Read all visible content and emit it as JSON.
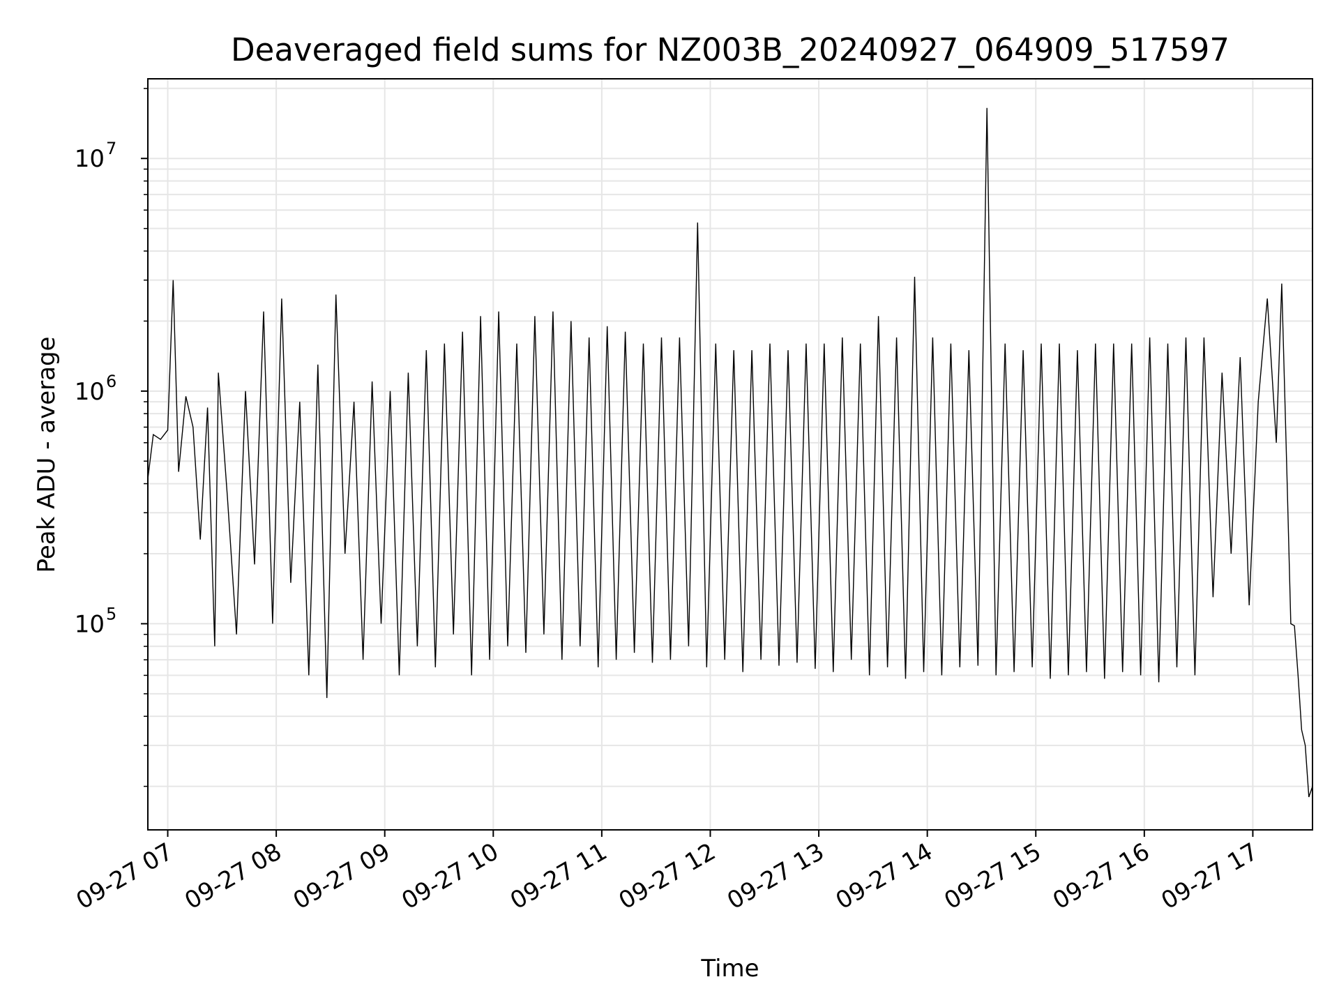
{
  "chart_data": {
    "type": "line",
    "title": "Deaveraged field sums for NZ003B_20240927_064909_517597",
    "xlabel": "Time",
    "ylabel": "Peak ADU - average",
    "yscale": "log",
    "grid": true,
    "legend": "none",
    "xlim": [
      "2024-09-27 06:49",
      "2024-09-27 17:33"
    ],
    "ylim": [
      13000,
      22000000
    ],
    "x_ticks": [
      "09-27 07",
      "09-27 08",
      "09-27 09",
      "09-27 10",
      "09-27 11",
      "09-27 12",
      "09-27 13",
      "09-27 14",
      "09-27 15",
      "09-27 16",
      "09-27 17"
    ],
    "y_ticks": [
      {
        "value": 100000,
        "base": "10",
        "exp": "5"
      },
      {
        "value": 1000000,
        "base": "10",
        "exp": "6"
      },
      {
        "value": 10000000,
        "base": "10",
        "exp": "7"
      }
    ],
    "line_color": "#000000",
    "series": [
      {
        "x": [
          "06:49",
          "06:52",
          "06:56",
          "07:00",
          "07:03",
          "07:06",
          "07:10",
          "07:14",
          "07:18",
          "07:22",
          "07:26",
          "07:28",
          "07:33",
          "07:38",
          "07:43",
          "07:48",
          "07:53",
          "07:58",
          "08:03",
          "08:08",
          "08:13",
          "08:18",
          "08:23",
          "08:28",
          "08:33",
          "08:38",
          "08:43",
          "08:48",
          "08:53",
          "08:58",
          "09:03",
          "09:08",
          "09:13",
          "09:18",
          "09:23",
          "09:28",
          "09:33",
          "09:38",
          "09:43",
          "09:48",
          "09:53",
          "09:58",
          "10:03",
          "10:08",
          "10:13",
          "10:18",
          "10:23",
          "10:28",
          "10:33",
          "10:38",
          "10:43",
          "10:48",
          "10:53",
          "10:58",
          "11:03",
          "11:08",
          "11:13",
          "11:18",
          "11:23",
          "11:28",
          "11:33",
          "11:38",
          "11:43",
          "11:48",
          "11:53",
          "11:58",
          "12:03",
          "12:08",
          "12:13",
          "12:18",
          "12:23",
          "12:28",
          "12:33",
          "12:38",
          "12:43",
          "12:48",
          "12:53",
          "12:58",
          "13:03",
          "13:08",
          "13:13",
          "13:18",
          "13:23",
          "13:28",
          "13:33",
          "13:38",
          "13:43",
          "13:48",
          "13:53",
          "13:58",
          "14:03",
          "14:08",
          "14:13",
          "14:18",
          "14:23",
          "14:28",
          "14:33",
          "14:38",
          "14:43",
          "14:48",
          "14:53",
          "14:58",
          "15:03",
          "15:08",
          "15:13",
          "15:18",
          "15:23",
          "15:28",
          "15:33",
          "15:38",
          "15:43",
          "15:48",
          "15:53",
          "15:58",
          "16:03",
          "16:08",
          "16:13",
          "16:18",
          "16:23",
          "16:28",
          "16:33",
          "16:38",
          "16:43",
          "16:48",
          "16:53",
          "16:58",
          "17:03",
          "17:08",
          "17:13",
          "17:16",
          "17:19",
          "17:21",
          "17:23",
          "17:25",
          "17:27",
          "17:29",
          "17:31",
          "17:33"
        ],
        "y": [
          420000,
          650000,
          620000,
          680000,
          3000000,
          450000,
          950000,
          700000,
          230000,
          850000,
          80000,
          1200000,
          350000,
          90000,
          1000000,
          180000,
          2200000,
          100000,
          2500000,
          150000,
          900000,
          60000,
          1300000,
          48000,
          2600000,
          200000,
          900000,
          70000,
          1100000,
          100000,
          1000000,
          60000,
          1200000,
          80000,
          1500000,
          65000,
          1600000,
          90000,
          1800000,
          60000,
          2100000,
          70000,
          2200000,
          80000,
          1600000,
          75000,
          2100000,
          90000,
          2200000,
          70000,
          2000000,
          80000,
          1700000,
          65000,
          1900000,
          70000,
          1800000,
          75000,
          1600000,
          68000,
          1700000,
          70000,
          1700000,
          80000,
          5300000,
          65000,
          1600000,
          70000,
          1500000,
          62000,
          1500000,
          70000,
          1600000,
          66000,
          1500000,
          68000,
          1600000,
          64000,
          1600000,
          62000,
          1700000,
          70000,
          1600000,
          60000,
          2100000,
          65000,
          1700000,
          58000,
          3100000,
          62000,
          1700000,
          60000,
          1600000,
          65000,
          1500000,
          66000,
          16500000,
          60000,
          1600000,
          62000,
          1500000,
          65000,
          1600000,
          58000,
          1600000,
          60000,
          1500000,
          62000,
          1600000,
          58000,
          1600000,
          62000,
          1600000,
          60000,
          1700000,
          56000,
          1600000,
          65000,
          1700000,
          60000,
          1700000,
          130000,
          1200000,
          200000,
          1400000,
          120000,
          900000,
          2500000,
          600000,
          2900000,
          400000,
          100000,
          98000,
          60000,
          35000,
          30000,
          18000,
          20000
        ]
      }
    ]
  }
}
